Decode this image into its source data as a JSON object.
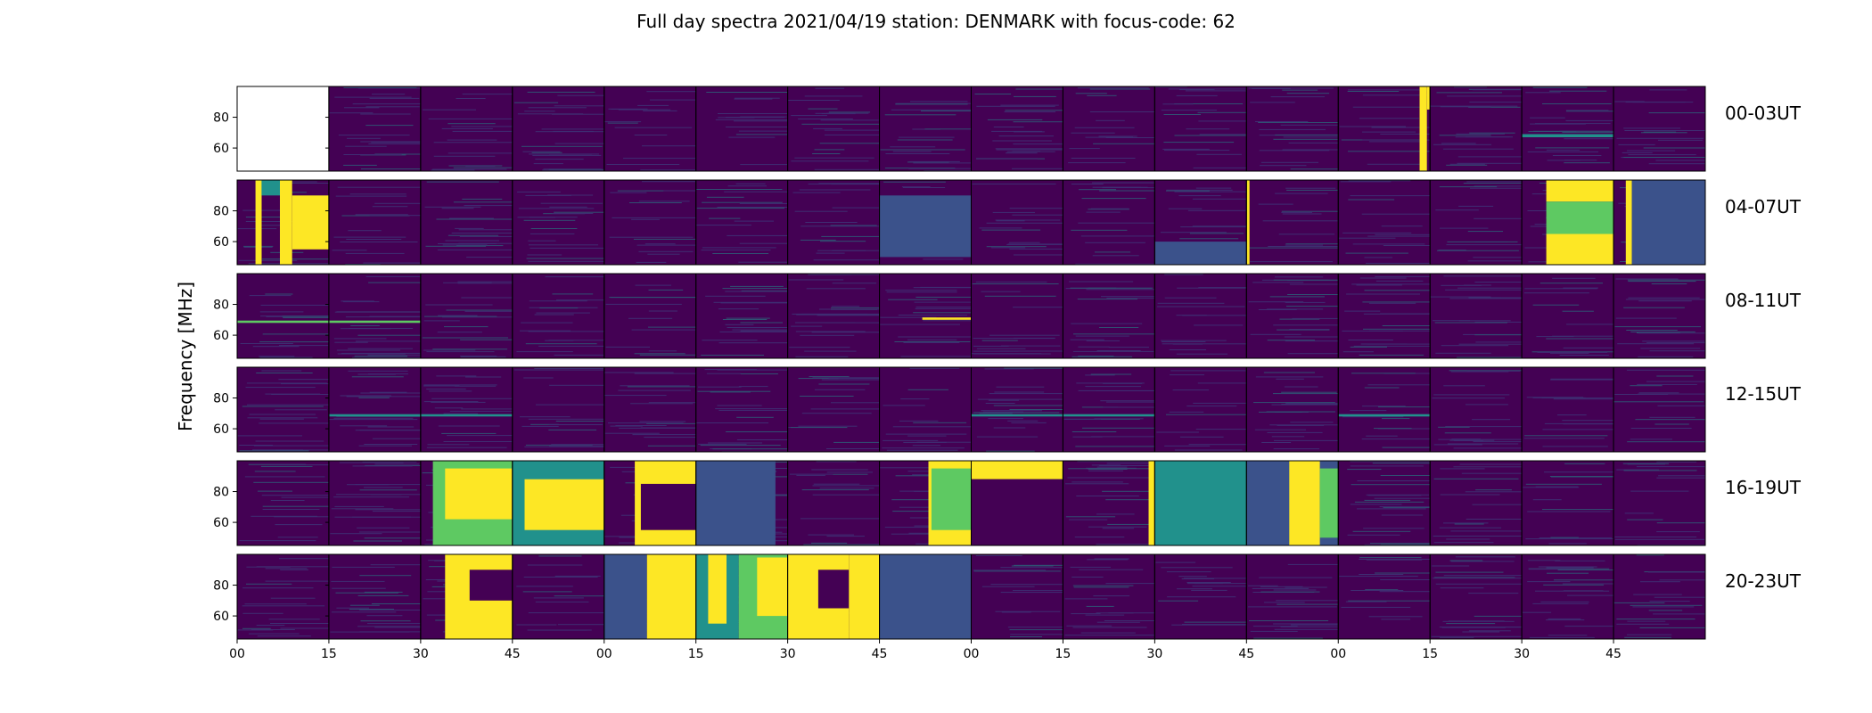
{
  "chart_data": {
    "type": "heatmap",
    "title": "Full day spectra 2021/04/19 station: DENMARK with focus-code: 62",
    "ylabel": "Frequency [MHz]",
    "ylim": [
      45,
      100
    ],
    "yticks": [
      60,
      80
    ],
    "xtick_labels": [
      "00",
      "15",
      "30",
      "45",
      "00",
      "15",
      "30",
      "45",
      "00",
      "15",
      "30",
      "45",
      "00",
      "15",
      "30",
      "45"
    ],
    "panels_per_row": 16,
    "panel_minutes": 15,
    "colormap": {
      "background": "#440154",
      "low": "#3b528b",
      "mid": "#21918c",
      "high": "#5ec962",
      "saturated": "#fde725",
      "missing": "#ffffff"
    },
    "rows": [
      {
        "label": "00-03UT",
        "missing_panels": [
          0
        ],
        "bursts": [
          {
            "t0": 193.3,
            "t1": 194.5,
            "f0": 45,
            "f1": 100,
            "level": "saturated"
          },
          {
            "t0": 194.5,
            "t1": 195.0,
            "f0": 85,
            "f1": 100,
            "level": "saturated"
          },
          {
            "t0": 210,
            "t1": 225,
            "f0": 67,
            "f1": 69,
            "level": "mid"
          }
        ]
      },
      {
        "label": "04-07UT",
        "missing_panels": [],
        "bursts": [
          {
            "t0": 3.0,
            "t1": 4.0,
            "f0": 45,
            "f1": 100,
            "level": "saturated"
          },
          {
            "t0": 7.0,
            "t1": 9.0,
            "f0": 45,
            "f1": 100,
            "level": "saturated"
          },
          {
            "t0": 9.0,
            "t1": 15.0,
            "f0": 55,
            "f1": 90,
            "level": "saturated"
          },
          {
            "t0": 4.0,
            "t1": 7.0,
            "f0": 90,
            "f1": 100,
            "level": "mid"
          },
          {
            "t0": 165,
            "t1": 165.5,
            "f0": 45,
            "f1": 100,
            "level": "saturated"
          },
          {
            "t0": 214,
            "t1": 225,
            "f0": 86,
            "f1": 100,
            "level": "saturated"
          },
          {
            "t0": 214,
            "t1": 225,
            "f0": 45,
            "f1": 65,
            "level": "saturated"
          },
          {
            "t0": 214,
            "t1": 225,
            "f0": 65,
            "f1": 86,
            "level": "high"
          },
          {
            "t0": 227,
            "t1": 228,
            "f0": 45,
            "f1": 100,
            "level": "saturated"
          },
          {
            "t0": 228,
            "t1": 240,
            "f0": 45,
            "f1": 100,
            "level": "low"
          },
          {
            "t0": 105,
            "t1": 120,
            "f0": 50,
            "f1": 90,
            "level": "low"
          },
          {
            "t0": 150,
            "t1": 165,
            "f0": 45,
            "f1": 60,
            "level": "low"
          }
        ]
      },
      {
        "label": "08-11UT",
        "missing_panels": [],
        "bursts": [
          {
            "t0": 0,
            "t1": 30,
            "f0": 68,
            "f1": 69.5,
            "level": "high"
          },
          {
            "t0": 112,
            "t1": 120,
            "f0": 70,
            "f1": 71.5,
            "level": "saturated"
          }
        ]
      },
      {
        "label": "12-15UT",
        "missing_panels": [],
        "bursts": [
          {
            "t0": 15,
            "t1": 45,
            "f0": 68,
            "f1": 69.5,
            "level": "mid"
          },
          {
            "t0": 120,
            "t1": 150,
            "f0": 68,
            "f1": 69.5,
            "level": "mid"
          },
          {
            "t0": 180,
            "t1": 195,
            "f0": 68,
            "f1": 69.5,
            "level": "mid"
          }
        ]
      },
      {
        "label": "16-19UT",
        "missing_panels": [],
        "bursts": [
          {
            "t0": 32,
            "t1": 45,
            "f0": 45,
            "f1": 100,
            "level": "high"
          },
          {
            "t0": 34,
            "t1": 45,
            "f0": 62,
            "f1": 95,
            "level": "saturated"
          },
          {
            "t0": 45,
            "t1": 60,
            "f0": 45,
            "f1": 100,
            "level": "mid"
          },
          {
            "t0": 47,
            "t1": 60,
            "f0": 55,
            "f1": 88,
            "level": "saturated"
          },
          {
            "t0": 65,
            "t1": 75,
            "f0": 45,
            "f1": 100,
            "level": "saturated"
          },
          {
            "t0": 66,
            "t1": 75,
            "f0": 55,
            "f1": 85,
            "level": "background"
          },
          {
            "t0": 75,
            "t1": 88,
            "f0": 45,
            "f1": 100,
            "level": "low"
          },
          {
            "t0": 113,
            "t1": 120,
            "f0": 45,
            "f1": 100,
            "level": "saturated"
          },
          {
            "t0": 113.5,
            "t1": 120,
            "f0": 55,
            "f1": 95,
            "level": "high"
          },
          {
            "t0": 120,
            "t1": 135,
            "f0": 88,
            "f1": 100,
            "level": "saturated"
          },
          {
            "t0": 120,
            "t1": 135,
            "f0": 45,
            "f1": 88,
            "level": "background"
          },
          {
            "t0": 149,
            "t1": 150,
            "f0": 45,
            "f1": 100,
            "level": "saturated"
          },
          {
            "t0": 150,
            "t1": 165,
            "f0": 45,
            "f1": 100,
            "level": "mid"
          },
          {
            "t0": 165,
            "t1": 180,
            "f0": 45,
            "f1": 100,
            "level": "low"
          },
          {
            "t0": 172,
            "t1": 177,
            "f0": 45,
            "f1": 100,
            "level": "saturated"
          },
          {
            "t0": 177,
            "t1": 180,
            "f0": 50,
            "f1": 95,
            "level": "high"
          }
        ]
      },
      {
        "label": "20-23UT",
        "missing_panels": [],
        "bursts": [
          {
            "t0": 34,
            "t1": 45,
            "f0": 45,
            "f1": 100,
            "level": "saturated"
          },
          {
            "t0": 38,
            "t1": 45,
            "f0": 70,
            "f1": 90,
            "level": "background"
          },
          {
            "t0": 60,
            "t1": 67,
            "f0": 45,
            "f1": 100,
            "level": "low"
          },
          {
            "t0": 67,
            "t1": 75,
            "f0": 45,
            "f1": 100,
            "level": "saturated"
          },
          {
            "t0": 75,
            "t1": 82,
            "f0": 45,
            "f1": 100,
            "level": "mid"
          },
          {
            "t0": 77,
            "t1": 80,
            "f0": 55,
            "f1": 100,
            "level": "saturated"
          },
          {
            "t0": 82,
            "t1": 90,
            "f0": 45,
            "f1": 100,
            "level": "high"
          },
          {
            "t0": 85,
            "t1": 90,
            "f0": 60,
            "f1": 98,
            "level": "saturated"
          },
          {
            "t0": 90,
            "t1": 100,
            "f0": 45,
            "f1": 100,
            "level": "saturated"
          },
          {
            "t0": 95,
            "t1": 105,
            "f0": 65,
            "f1": 90,
            "level": "background"
          },
          {
            "t0": 100,
            "t1": 105,
            "f0": 45,
            "f1": 100,
            "level": "saturated"
          },
          {
            "t0": 105,
            "t1": 120,
            "f0": 45,
            "f1": 100,
            "level": "low"
          }
        ]
      }
    ]
  }
}
